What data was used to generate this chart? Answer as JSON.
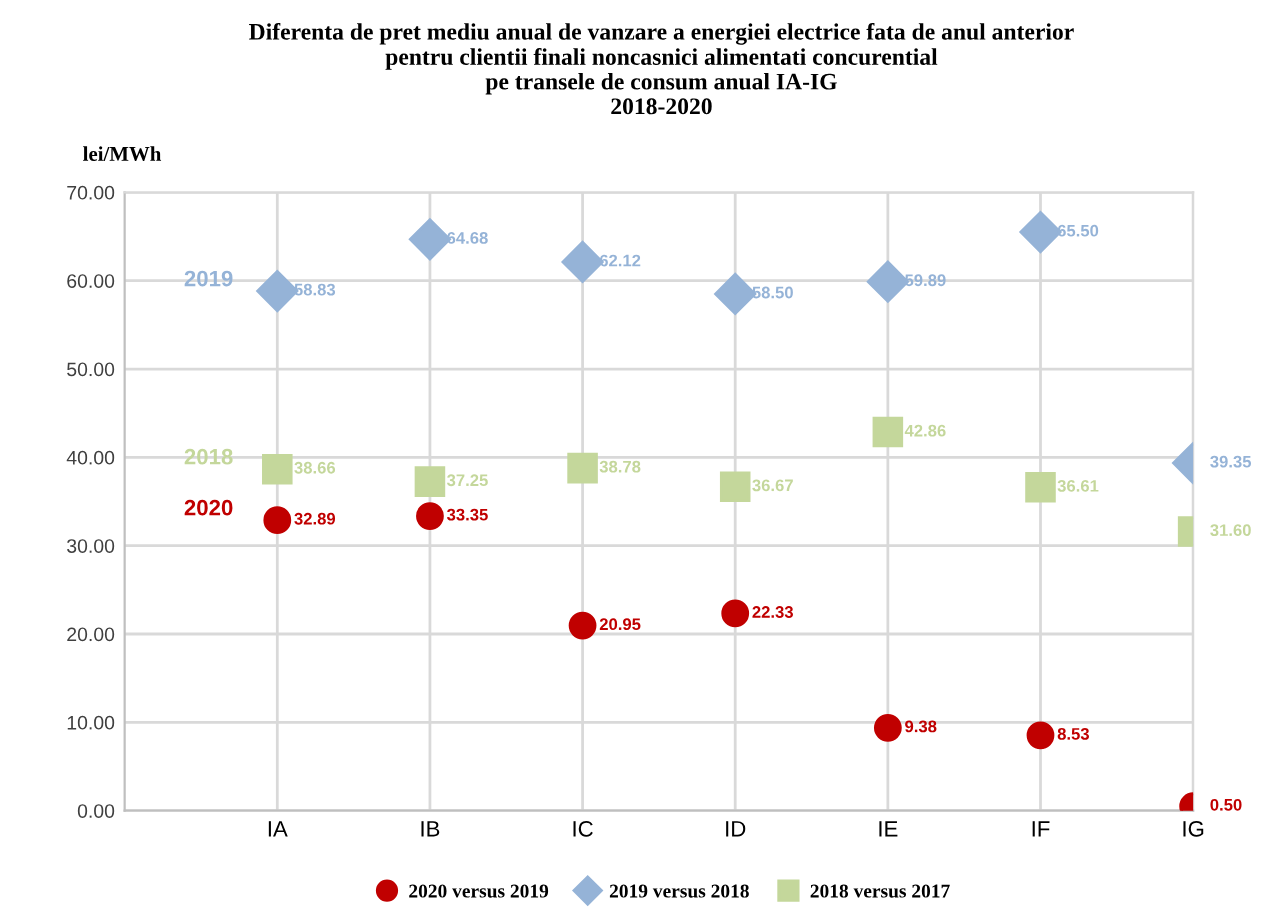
{
  "chart_data": {
    "type": "scatter",
    "title": "Diferenta de pret mediu anual de vanzare a energiei electrice fata de anul anterior\npentru clientii finali noncasnici alimentati concurential\npe transele de consum anual IA-IG\n2018-2020",
    "ylabel": "lei/MWh",
    "categories": [
      "IA",
      "IB",
      "IC",
      "ID",
      "IE",
      "IF",
      "IG"
    ],
    "series": [
      {
        "name": "2020 versus 2019",
        "color": "#c00000",
        "marker": "circle",
        "values": [
          32.89,
          33.35,
          20.95,
          22.33,
          9.38,
          8.53,
          0.5
        ],
        "value_labels": [
          "32.89",
          "33.35",
          "20.95",
          "22.33",
          "9.38",
          "8.53",
          "0.50"
        ]
      },
      {
        "name": "2019 versus 2018",
        "color": "#95b3d7",
        "marker": "diamond",
        "values": [
          58.83,
          64.68,
          62.12,
          58.5,
          59.89,
          65.5,
          39.35
        ],
        "value_labels": [
          "58.83",
          "64.68",
          "62.12",
          "58.50",
          "59.89",
          "65.50",
          "39.35"
        ]
      },
      {
        "name": "2018 versus 2017",
        "color": "#c4d79b",
        "marker": "square",
        "values": [
          38.66,
          37.25,
          38.78,
          36.67,
          42.86,
          36.61,
          31.6
        ],
        "value_labels": [
          "38.66",
          "37.25",
          "38.78",
          "36.67",
          "42.86",
          "36.61",
          "31.60"
        ]
      }
    ],
    "annotations": [
      "2020",
      "2019",
      "2018"
    ],
    "ylim": [
      0,
      70
    ],
    "yticks": [
      {
        "value": 0,
        "label": "0.00"
      },
      {
        "value": 10,
        "label": "10.00"
      },
      {
        "value": 20,
        "label": "20.00"
      },
      {
        "value": 30,
        "label": "30.00"
      },
      {
        "value": 40,
        "label": "40.00"
      },
      {
        "value": 50,
        "label": "50.00"
      },
      {
        "value": 60,
        "label": "60.00"
      },
      {
        "value": 70,
        "label": "70.00"
      }
    ],
    "grid": true,
    "legend": "bottom"
  }
}
